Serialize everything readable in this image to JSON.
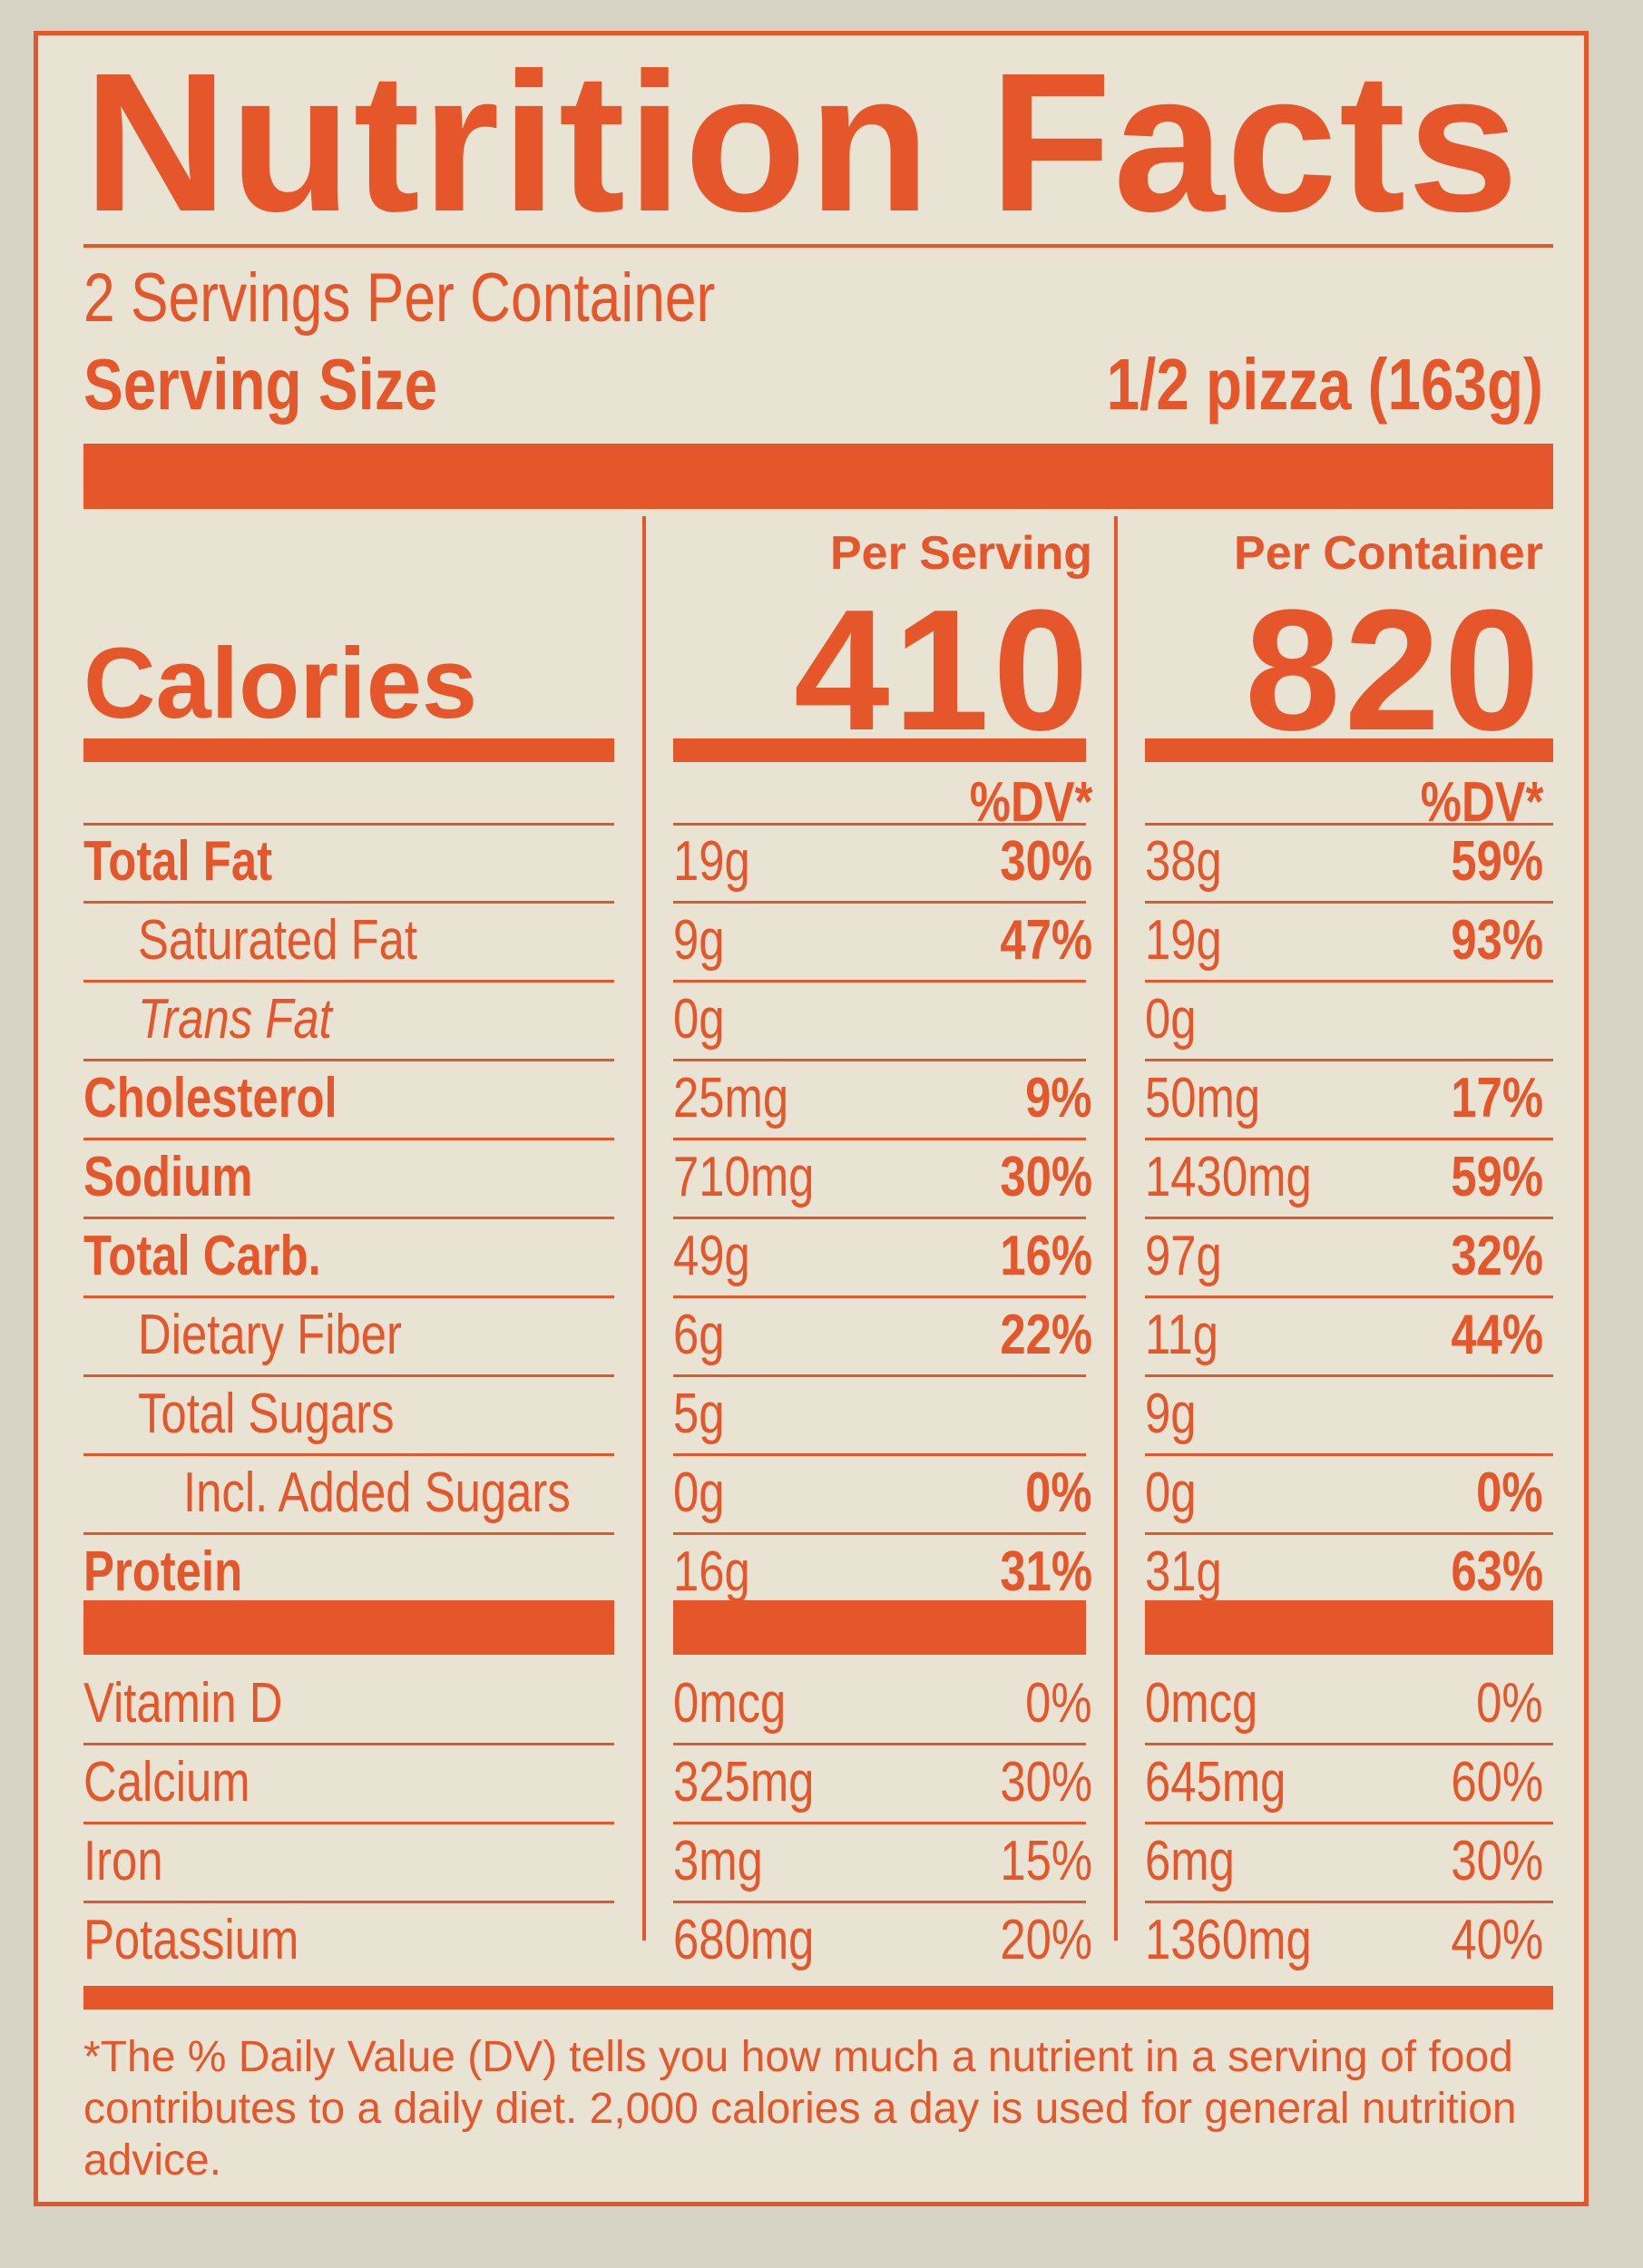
{
  "title": "Nutrition Facts",
  "servings_per_container": "2 Servings Per Container",
  "serving_size_label": "Serving Size",
  "serving_size_value": "1/2 pizza (163g)",
  "columns": {
    "per_serving": "Per Serving",
    "per_container": "Per Container"
  },
  "calories_label": "Calories",
  "calories_per_serving": "410",
  "calories_per_container": "820",
  "dv_header": "%DV*",
  "nutrients": [
    {
      "name": "Total Fat",
      "serving_amt": "19g",
      "serving_dv": "30%",
      "container_amt": "38g",
      "container_dv": "59%"
    },
    {
      "name": "Saturated Fat",
      "serving_amt": "9g",
      "serving_dv": "47%",
      "container_amt": "19g",
      "container_dv": "93%"
    },
    {
      "name": "Trans Fat",
      "serving_amt": "0g",
      "serving_dv": "",
      "container_amt": "0g",
      "container_dv": ""
    },
    {
      "name": "Cholesterol",
      "serving_amt": "25mg",
      "serving_dv": "9%",
      "container_amt": "50mg",
      "container_dv": "17%"
    },
    {
      "name": "Sodium",
      "serving_amt": "710mg",
      "serving_dv": "30%",
      "container_amt": "1430mg",
      "container_dv": "59%"
    },
    {
      "name": "Total Carb.",
      "serving_amt": "49g",
      "serving_dv": "16%",
      "container_amt": "97g",
      "container_dv": "32%"
    },
    {
      "name": "Dietary Fiber",
      "serving_amt": "6g",
      "serving_dv": "22%",
      "container_amt": "11g",
      "container_dv": "44%"
    },
    {
      "name": "Total Sugars",
      "serving_amt": "5g",
      "serving_dv": "",
      "container_amt": "9g",
      "container_dv": ""
    },
    {
      "name": "Incl. Added Sugars",
      "serving_amt": "0g",
      "serving_dv": "0%",
      "container_amt": "0g",
      "container_dv": "0%"
    },
    {
      "name": "Protein",
      "serving_amt": "16g",
      "serving_dv": "31%",
      "container_amt": "31g",
      "container_dv": "63%"
    }
  ],
  "vitamins": [
    {
      "name": "Vitamin D",
      "serving_amt": "0mcg",
      "serving_dv": "0%",
      "container_amt": "0mcg",
      "container_dv": "0%"
    },
    {
      "name": "Calcium",
      "serving_amt": "325mg",
      "serving_dv": "30%",
      "container_amt": "645mg",
      "container_dv": "60%"
    },
    {
      "name": "Iron",
      "serving_amt": "3mg",
      "serving_dv": "15%",
      "container_amt": "6mg",
      "container_dv": "30%"
    },
    {
      "name": "Potassium",
      "serving_amt": "680mg",
      "serving_dv": "20%",
      "container_amt": "1360mg",
      "container_dv": "40%"
    }
  ],
  "footnote": "*The % Daily Value (DV) tells you how much a nutrient in a serving of food contributes to a daily diet. 2,000 calories a day is used for general nutrition advice.",
  "colors": {
    "ink": "#e5572a",
    "panel": "#e9e3d4",
    "background": "#d6d2c4"
  }
}
